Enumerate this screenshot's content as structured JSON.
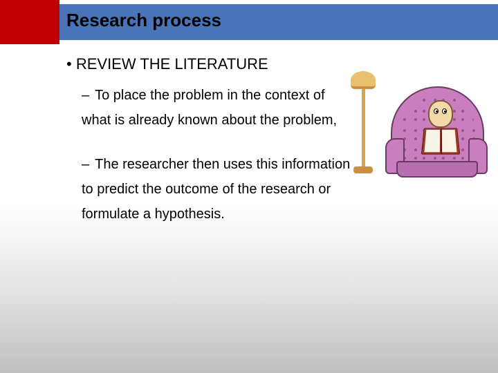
{
  "header": {
    "title": "Research process",
    "bar_color": "#4a74b8",
    "accent_color": "#c00000",
    "title_color": "#000000",
    "title_fontsize": 26
  },
  "content": {
    "main_bullet": "REVIEW THE LITERATURE",
    "sub_bullets": [
      "To place the problem in the context of what is already known about the problem,",
      "The researcher then uses this information to predict the outcome of the research or formulate a hypothesis."
    ],
    "text_color": "#000000",
    "main_fontsize": 22,
    "sub_fontsize": 20
  },
  "illustration": {
    "description": "cartoon-book-reader-in-armchair-with-lamp",
    "chair_color": "#c97fbf",
    "chair_border": "#6a3a62",
    "lamp_color": "#d4a64a",
    "book_color": "#a03828",
    "skin_color": "#f5d9a8"
  },
  "background": {
    "gradient_top": "#ffffff",
    "gradient_bottom": "#c0c0c0"
  }
}
